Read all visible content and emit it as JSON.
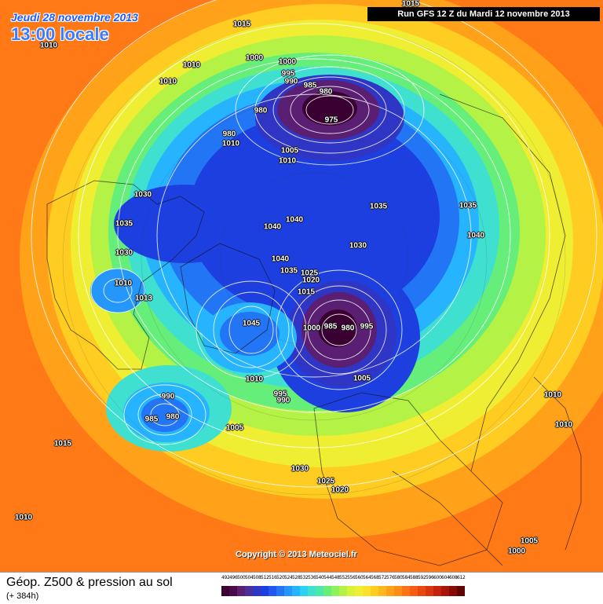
{
  "header": {
    "date_line": "Jeudi 28 novembre 2013",
    "time_line": "13:00 locale",
    "run_info": "Run GFS 12 Z du Mardi 12 novembre 2013"
  },
  "footer": {
    "title": "Géop. Z500 & pression au sol",
    "lead_time": "(+ 384h)",
    "copyright": "Copyright © 2013 Meteociel.fr"
  },
  "legend": {
    "values": [
      "492",
      "496",
      "500",
      "504",
      "508",
      "512",
      "516",
      "520",
      "524",
      "528",
      "532",
      "536",
      "540",
      "544",
      "548",
      "552",
      "556",
      "560",
      "564",
      "568",
      "572",
      "576",
      "580",
      "584",
      "588",
      "592",
      "596",
      "600",
      "604",
      "608",
      "612"
    ],
    "colors": [
      "#3a0032",
      "#4a0a48",
      "#5a1f73",
      "#4b2e9a",
      "#2f35c4",
      "#1d3fe0",
      "#1f57f0",
      "#2276f5",
      "#2596fa",
      "#27b4ff",
      "#2ed0f2",
      "#3fe0d0",
      "#4ce8a6",
      "#66ee7a",
      "#8cf25a",
      "#b4f246",
      "#d8f23a",
      "#f0ee33",
      "#fce02a",
      "#ffcc22",
      "#ffb81e",
      "#ffa21a",
      "#ff8c17",
      "#ff7414",
      "#f55d12",
      "#e8480f",
      "#d8350d",
      "#c4230b",
      "#a81509",
      "#880a06",
      "#600403"
    ]
  },
  "pressure_labels": [
    {
      "text": "1015"
    },
    {
      "text": "1010"
    },
    {
      "text": "1015"
    },
    {
      "text": "1010"
    },
    {
      "text": "1010"
    },
    {
      "text": "1000"
    },
    {
      "text": "1000"
    },
    {
      "text": "995"
    },
    {
      "text": "990"
    },
    {
      "text": "985"
    },
    {
      "text": "980"
    },
    {
      "text": "980"
    },
    {
      "text": "975"
    },
    {
      "text": "980"
    },
    {
      "text": "1005"
    },
    {
      "text": "1010"
    },
    {
      "text": "1010"
    },
    {
      "text": "1030"
    },
    {
      "text": "1035"
    },
    {
      "text": "1035"
    },
    {
      "text": "1035"
    },
    {
      "text": "1040"
    },
    {
      "text": "1040"
    },
    {
      "text": "1030"
    },
    {
      "text": "1030"
    },
    {
      "text": "1040"
    },
    {
      "text": "1040"
    },
    {
      "text": "1035"
    },
    {
      "text": "1025"
    },
    {
      "text": "1020"
    },
    {
      "text": "1015"
    },
    {
      "text": "1010"
    },
    {
      "text": "1013"
    },
    {
      "text": "1045"
    },
    {
      "text": "1000"
    },
    {
      "text": "985"
    },
    {
      "text": "980"
    },
    {
      "text": "995"
    },
    {
      "text": "1005"
    },
    {
      "text": "1010"
    },
    {
      "text": "995"
    },
    {
      "text": "990"
    },
    {
      "text": "990"
    },
    {
      "text": "985"
    },
    {
      "text": "980"
    },
    {
      "text": "1005"
    },
    {
      "text": "1015"
    },
    {
      "text": "1010"
    },
    {
      "text": "1010"
    },
    {
      "text": "1030"
    },
    {
      "text": "1025"
    },
    {
      "text": "1020"
    },
    {
      "text": "1005"
    },
    {
      "text": "1000"
    },
    {
      "text": "1010"
    }
  ]
}
